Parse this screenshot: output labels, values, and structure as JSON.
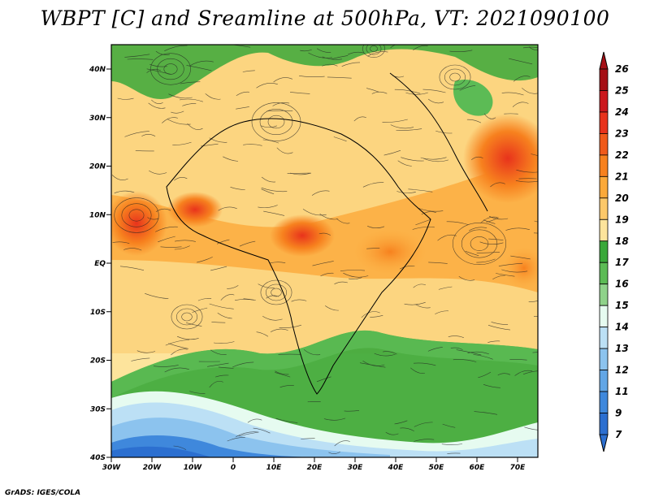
{
  "title": "WBPT [C] and Sreamline at 500hPa, VT: 2021090100",
  "credit": "GrADS: IGES/COLA",
  "map": {
    "lat_ticks": [
      "40N",
      "30N",
      "20N",
      "10N",
      "EQ",
      "10S",
      "20S",
      "30S",
      "40S"
    ],
    "lon_ticks": [
      "30W",
      "20W",
      "10W",
      "0",
      "10E",
      "20E",
      "30E",
      "40E",
      "50E",
      "60E",
      "70E"
    ],
    "lon_range": [
      -30,
      75
    ],
    "lat_range": [
      -40,
      45
    ]
  },
  "colorbar": {
    "labels": [
      "26",
      "25",
      "24",
      "23",
      "22",
      "21",
      "20",
      "19",
      "18",
      "17",
      "16",
      "15",
      "14",
      "13",
      "12",
      "11",
      "9",
      "7"
    ],
    "colors": [
      "#a50f15",
      "#cb181d",
      "#e8331c",
      "#f05a1a",
      "#f7811e",
      "#fba93a",
      "#fcc86a",
      "#fde49c",
      "#3aa83a",
      "#5cbb55",
      "#8fd28a",
      "#e6fbf0",
      "#bce0f5",
      "#8cc3ee",
      "#62a6e6",
      "#3f88dc",
      "#2c6fd0"
    ]
  }
}
